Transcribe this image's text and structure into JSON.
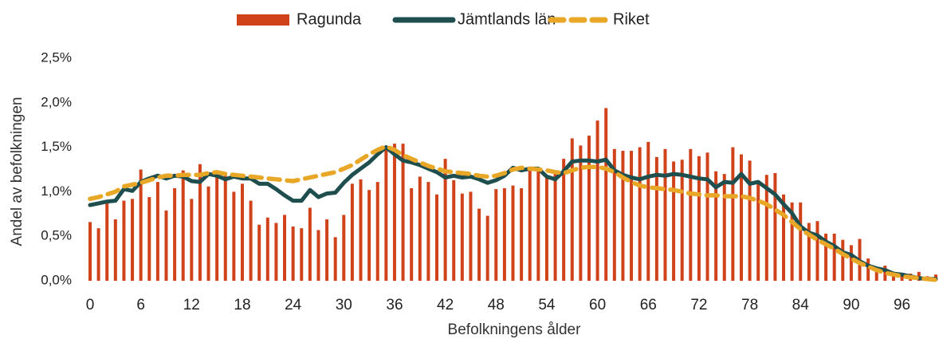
{
  "chart_data": {
    "type": "bar",
    "xlabel": "Befolkningens ålder",
    "ylabel": "Andel av befolkningen",
    "legend": "top",
    "categories": [
      0,
      null,
      null,
      null,
      null,
      null,
      6,
      null,
      null,
      null,
      null,
      null,
      12,
      null,
      null,
      null,
      null,
      null,
      18,
      null,
      null,
      null,
      null,
      null,
      24,
      null,
      null,
      null,
      null,
      null,
      30,
      null,
      null,
      null,
      null,
      null,
      36,
      null,
      null,
      null,
      null,
      null,
      42,
      null,
      null,
      null,
      null,
      null,
      48,
      null,
      null,
      null,
      null,
      null,
      54,
      null,
      null,
      null,
      null,
      null,
      60,
      null,
      null,
      null,
      null,
      null,
      66,
      null,
      null,
      null,
      null,
      null,
      72,
      null,
      null,
      null,
      null,
      null,
      78,
      null,
      null,
      null,
      null,
      null,
      84,
      null,
      null,
      null,
      null,
      null,
      90,
      null,
      null,
      null,
      null,
      null,
      96,
      null,
      null,
      null,
      null
    ],
    "ylim": [
      0,
      2.5
    ],
    "yticks": [
      {
        "value": 0,
        "label": "0,0%"
      },
      {
        "value": 0.5,
        "label": "0,5%"
      },
      {
        "value": 1,
        "label": "1,0%"
      },
      {
        "value": 1.5,
        "label": "1,5%"
      },
      {
        "value": 2,
        "label": "2,0%"
      },
      {
        "value": 2.5,
        "label": "2,5%"
      }
    ],
    "series": [
      {
        "name": "Ragunda",
        "type": "bar",
        "color": "#d0431a",
        "values": [
          0.66,
          0.59,
          0.87,
          0.69,
          0.9,
          0.92,
          1.25,
          0.94,
          1.11,
          0.79,
          1.04,
          1.24,
          0.92,
          1.31,
          1.06,
          1.24,
          1.18,
          1.0,
          1.09,
          0.9,
          0.63,
          0.71,
          0.65,
          0.74,
          0.61,
          0.59,
          0.82,
          0.57,
          0.69,
          0.49,
          0.74,
          1.09,
          1.14,
          1.02,
          1.11,
          1.47,
          1.54,
          1.54,
          1.04,
          1.17,
          1.11,
          0.97,
          1.37,
          1.13,
          0.98,
          1.0,
          0.81,
          0.73,
          1.03,
          1.04,
          1.07,
          1.04,
          1.25,
          1.23,
          1.18,
          1.2,
          1.37,
          1.6,
          1.52,
          1.63,
          1.8,
          1.94,
          1.48,
          1.46,
          1.46,
          1.5,
          1.56,
          1.39,
          1.48,
          1.34,
          1.36,
          1.48,
          1.4,
          1.44,
          1.23,
          1.2,
          1.5,
          1.42,
          1.35,
          1.1,
          1.19,
          1.21,
          0.97,
          0.88,
          0.88,
          0.65,
          0.67,
          0.53,
          0.53,
          0.46,
          0.4,
          0.47,
          0.25,
          0.15,
          0.17,
          0.1,
          0.08,
          0.08,
          0.1,
          0.05,
          0.07
        ]
      },
      {
        "name": "Jämtlands län",
        "type": "line",
        "color": "#1f4e4f",
        "values": [
          0.85,
          0.87,
          0.89,
          0.9,
          1.03,
          1.01,
          1.11,
          1.15,
          1.18,
          1.15,
          1.18,
          1.17,
          1.12,
          1.11,
          1.2,
          1.18,
          1.14,
          1.17,
          1.15,
          1.15,
          1.09,
          1.09,
          1.03,
          0.96,
          0.9,
          0.9,
          1.02,
          0.94,
          0.98,
          0.99,
          1.1,
          1.19,
          1.26,
          1.33,
          1.42,
          1.5,
          1.42,
          1.35,
          1.33,
          1.3,
          1.26,
          1.22,
          1.16,
          1.18,
          1.16,
          1.17,
          1.14,
          1.1,
          1.13,
          1.18,
          1.27,
          1.24,
          1.26,
          1.26,
          1.17,
          1.14,
          1.23,
          1.34,
          1.35,
          1.35,
          1.34,
          1.36,
          1.24,
          1.19,
          1.16,
          1.14,
          1.17,
          1.19,
          1.18,
          1.2,
          1.19,
          1.17,
          1.15,
          1.14,
          1.05,
          1.11,
          1.1,
          1.2,
          1.09,
          1.11,
          1.04,
          0.97,
          0.86,
          0.76,
          0.61,
          0.54,
          0.51,
          0.44,
          0.39,
          0.32,
          0.29,
          0.22,
          0.17,
          0.14,
          0.12,
          0.08,
          0.07,
          0.05,
          0.03,
          0.02,
          0.02
        ]
      },
      {
        "name": "Riket",
        "type": "line",
        "dashed": true,
        "color": "#e8a726",
        "values": [
          0.92,
          0.94,
          0.97,
          1.0,
          1.06,
          1.08,
          1.1,
          1.13,
          1.16,
          1.18,
          1.18,
          1.19,
          1.19,
          1.19,
          1.21,
          1.22,
          1.2,
          1.19,
          1.18,
          1.17,
          1.16,
          1.15,
          1.14,
          1.13,
          1.12,
          1.14,
          1.16,
          1.18,
          1.2,
          1.22,
          1.26,
          1.3,
          1.36,
          1.42,
          1.47,
          1.51,
          1.47,
          1.41,
          1.37,
          1.33,
          1.29,
          1.26,
          1.23,
          1.22,
          1.21,
          1.2,
          1.18,
          1.17,
          1.18,
          1.21,
          1.25,
          1.27,
          1.26,
          1.25,
          1.24,
          1.22,
          1.21,
          1.24,
          1.27,
          1.28,
          1.28,
          1.26,
          1.22,
          1.16,
          1.11,
          1.07,
          1.05,
          1.04,
          1.03,
          1.02,
          1.0,
          0.98,
          0.97,
          0.96,
          0.96,
          0.95,
          0.95,
          0.95,
          0.93,
          0.9,
          0.86,
          0.8,
          0.74,
          0.66,
          0.58,
          0.52,
          0.46,
          0.41,
          0.36,
          0.3,
          0.25,
          0.2,
          0.16,
          0.12,
          0.09,
          0.07,
          0.05,
          0.04,
          0.03,
          0.02,
          0.01
        ]
      }
    ]
  }
}
